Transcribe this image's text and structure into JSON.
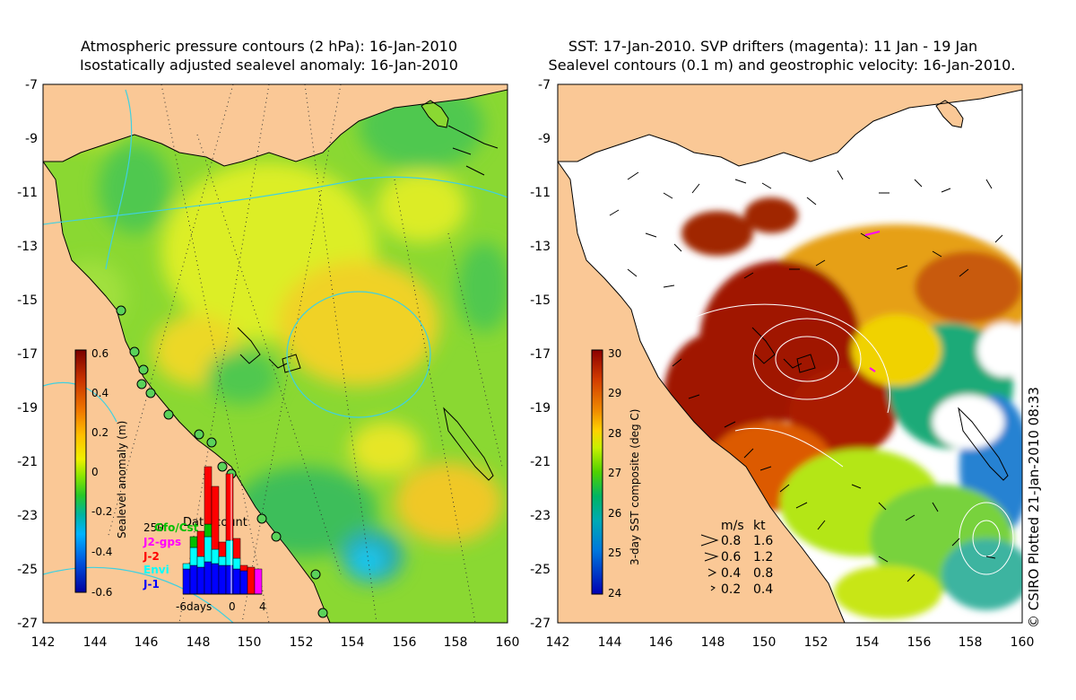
{
  "left_map": {
    "title_line1": "Atmospheric pressure contours (2 hPa): 16-Jan-2010",
    "title_line2": "Isostatically adjusted sealevel anomaly: 16-Jan-2010",
    "y_ticks": [
      "-7",
      "-9",
      "-11",
      "-13",
      "-15",
      "-17",
      "-19",
      "-21",
      "-23",
      "-25",
      "-27"
    ],
    "x_ticks": [
      "142",
      "144",
      "146",
      "148",
      "150",
      "152",
      "154",
      "156",
      "158",
      "160"
    ],
    "colorbar": {
      "label": "Sealevel anomaly (m)",
      "ticks": [
        "0.6",
        "0.4",
        "0.2",
        "0",
        "-0.2",
        "-0.4",
        "-0.6"
      ],
      "colors": [
        "#7a0000",
        "#c83200",
        "#f07800",
        "#ffbe00",
        "#f5f000",
        "#a0f000",
        "#28c828",
        "#00b4a0",
        "#00b4ff",
        "#0064e6",
        "#0000a0"
      ]
    },
    "inset": {
      "title": "Data count",
      "max_label": "250",
      "legend": [
        {
          "label": "Gfo/Cst",
          "color": "#00c000"
        },
        {
          "label": "J2-gps",
          "color": "#ff00ff"
        },
        {
          "label": "J-2",
          "color": "#ff0000"
        },
        {
          "label": "Envi",
          "color": "#00ffff"
        },
        {
          "label": "J-1",
          "color": "#0000ff"
        }
      ],
      "x_labels": [
        "-6days",
        "0",
        "4"
      ]
    }
  },
  "right_map": {
    "title_line1": "SST: 17-Jan-2010. SVP drifters (magenta): 11 Jan - 19 Jan",
    "title_line2": "Sealevel contours (0.1 m) and geostrophic velocity: 16-Jan-2010.",
    "y_ticks": [
      "-7",
      "-9",
      "-11",
      "-13",
      "-15",
      "-17",
      "-19",
      "-21",
      "-23",
      "-25",
      "-27"
    ],
    "x_ticks": [
      "142",
      "144",
      "146",
      "148",
      "150",
      "152",
      "154",
      "156",
      "158",
      "160"
    ],
    "colorbar": {
      "label": "3-day SST composite (deg C)",
      "ticks": [
        "30",
        "29",
        "28",
        "27",
        "26",
        "25",
        "24"
      ],
      "colors": [
        "#8c0000",
        "#d23c00",
        "#f08c00",
        "#ffd200",
        "#c8f000",
        "#50d200",
        "#00b464",
        "#00aab4",
        "#0078dc",
        "#0000b4"
      ]
    },
    "velocity_legend": {
      "header_ms": "m/s",
      "header_kt": "kt",
      "rows": [
        {
          "ms": "0.8",
          "kt": "1.6"
        },
        {
          "ms": "0.6",
          "kt": "1.2"
        },
        {
          "ms": "0.4",
          "kt": "0.8"
        },
        {
          "ms": "0.2",
          "kt": "0.4"
        }
      ]
    }
  },
  "credit": "© CSIRO Plotted 21-Jan-2010 08:33"
}
